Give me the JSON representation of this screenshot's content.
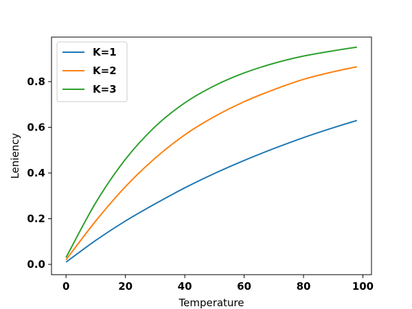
{
  "chart_data": {
    "type": "line",
    "xlabel": "Temperature",
    "ylabel": "Leniency",
    "xlim": [
      -4.9,
      102.9
    ],
    "ylim": [
      -0.045,
      0.995
    ],
    "xticks": [
      0,
      20,
      40,
      60,
      80,
      100
    ],
    "yticks": [
      0.0,
      0.2,
      0.4,
      0.6,
      0.8
    ],
    "xtick_labels": [
      "0",
      "20",
      "40",
      "60",
      "80",
      "100"
    ],
    "ytick_labels": [
      "0.0",
      "0.2",
      "0.4",
      "0.6",
      "0.8"
    ],
    "grid": false,
    "legend_position": "top-left",
    "x": [
      0,
      10,
      20,
      30,
      40,
      50,
      60,
      70,
      80,
      90,
      98
    ],
    "series": [
      {
        "name": "K=1",
        "color": "#1f77b4",
        "values": [
          0.01,
          0.105,
          0.19,
          0.265,
          0.335,
          0.398,
          0.455,
          0.507,
          0.555,
          0.598,
          0.63
        ]
      },
      {
        "name": "K=2",
        "color": "#ff7f0e",
        "values": [
          0.02,
          0.19,
          0.34,
          0.465,
          0.567,
          0.647,
          0.712,
          0.765,
          0.81,
          0.843,
          0.865
        ]
      },
      {
        "name": "K=3",
        "color": "#2ca02c",
        "values": [
          0.03,
          0.27,
          0.46,
          0.603,
          0.707,
          0.782,
          0.838,
          0.88,
          0.912,
          0.935,
          0.951
        ]
      }
    ]
  }
}
